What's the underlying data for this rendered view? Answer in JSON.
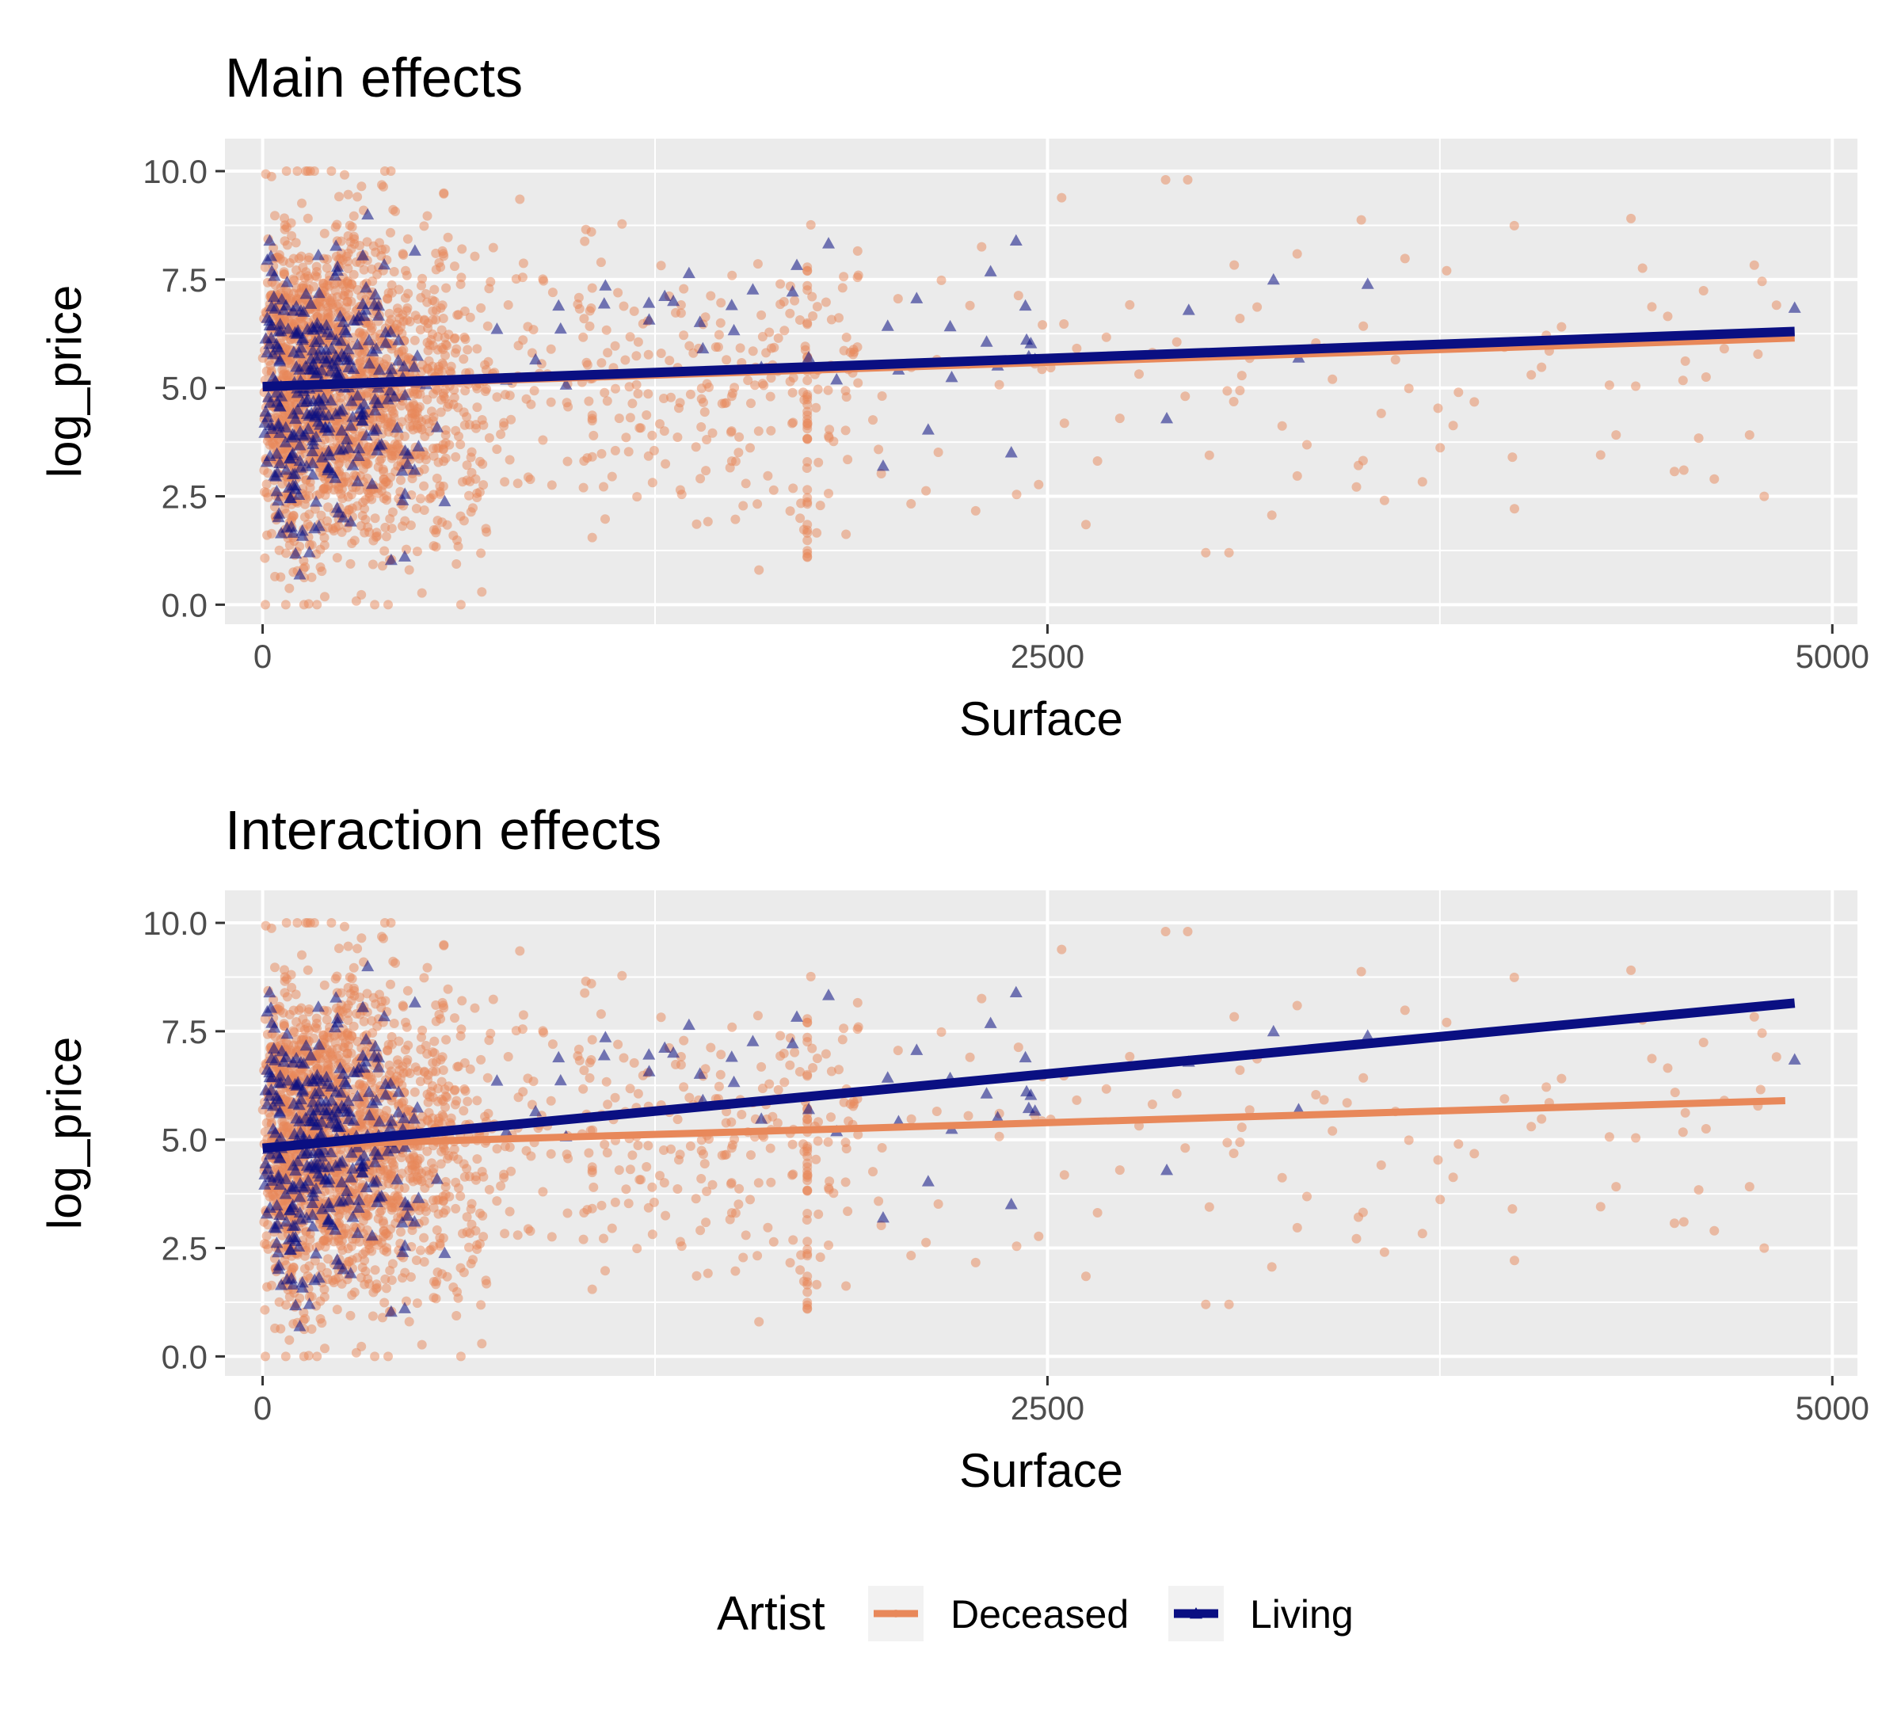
{
  "chart_data": [
    {
      "type": "scatter",
      "title": "Main effects",
      "xlabel": "Surface",
      "ylabel": "log_price",
      "xlim": [
        -120,
        5080
      ],
      "ylim": [
        -0.45,
        10.75
      ],
      "x_ticks": [
        0,
        2500,
        5000
      ],
      "x_tick_labels": [
        "0",
        "2500",
        "5000"
      ],
      "y_ticks": [
        0,
        2.5,
        5,
        7.5,
        10
      ],
      "y_tick_labels": [
        "0.0",
        "2.5",
        "5.0",
        "7.5",
        "10.0"
      ],
      "grid": true,
      "series": [
        {
          "name": "Deceased",
          "marker": "circle",
          "color": "#E8885A",
          "fit_line": {
            "x": [
              0,
              4880
            ],
            "y": [
              5.0,
              6.15
            ]
          }
        },
        {
          "name": "Living",
          "marker": "triangle",
          "color": "#0A0F82",
          "fit_line": {
            "x": [
              0,
              4880
            ],
            "y": [
              5.03,
              6.3
            ]
          }
        }
      ]
    },
    {
      "type": "scatter",
      "title": "Interaction effects",
      "xlabel": "Surface",
      "ylabel": "log_price",
      "xlim": [
        -120,
        5080
      ],
      "ylim": [
        -0.45,
        10.75
      ],
      "x_ticks": [
        0,
        2500,
        5000
      ],
      "x_tick_labels": [
        "0",
        "2500",
        "5000"
      ],
      "y_ticks": [
        0,
        2.5,
        5,
        7.5,
        10
      ],
      "y_tick_labels": [
        "0.0",
        "2.5",
        "5.0",
        "7.5",
        "10.0"
      ],
      "grid": true,
      "series": [
        {
          "name": "Deceased",
          "marker": "circle",
          "color": "#E8885A",
          "fit_line": {
            "x": [
              0,
              4850
            ],
            "y": [
              4.85,
              5.9
            ]
          }
        },
        {
          "name": "Living",
          "marker": "triangle",
          "color": "#0A0F82",
          "fit_line": {
            "x": [
              0,
              4880
            ],
            "y": [
              4.8,
              8.15
            ]
          }
        }
      ]
    }
  ],
  "legend": {
    "title": "Artist",
    "position": "bottom",
    "items": [
      {
        "label": "Deceased",
        "color": "#E8885A"
      },
      {
        "label": "Living",
        "color": "#0A0F82"
      }
    ]
  },
  "colors": {
    "panel_background": "#EBEBEB",
    "grid": "#FFFFFF",
    "deceased": "#E8885A",
    "living": "#0A0F82"
  }
}
